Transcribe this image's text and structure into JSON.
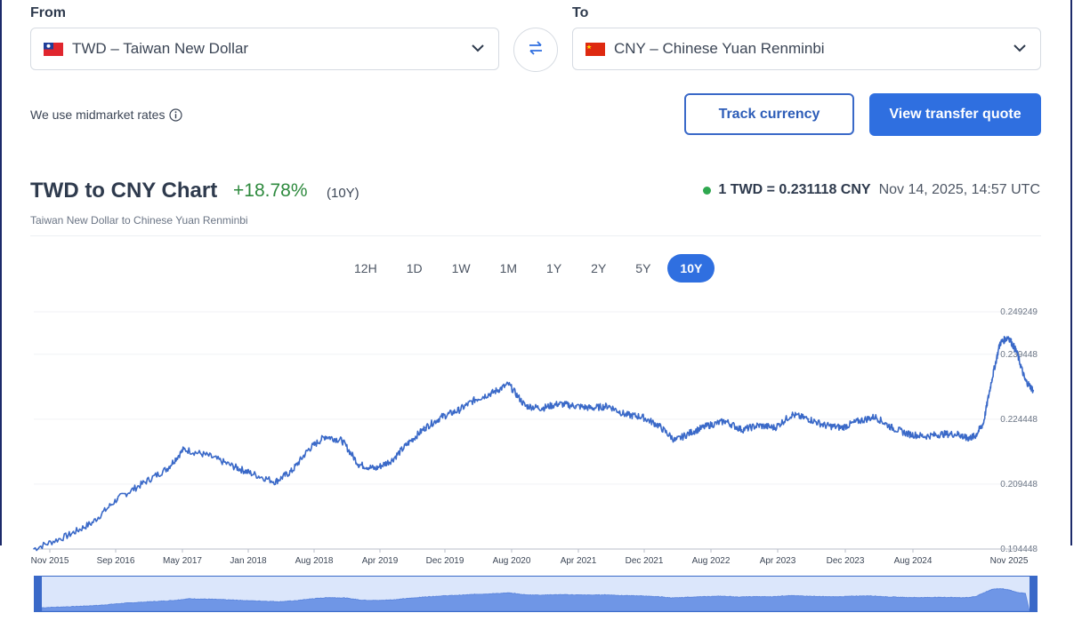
{
  "converter": {
    "from_label": "From",
    "to_label": "To",
    "from_currency": "TWD – Taiwan New Dollar",
    "to_currency": "CNY – Chinese Yuan Renminbi",
    "midmarket_text": "We use midmarket rates",
    "track_button": "Track currency",
    "quote_button": "View transfer quote",
    "icons": {
      "from_flag": "taiwan-flag-icon",
      "to_flag": "china-flag-icon",
      "swap": "swap-arrows-icon",
      "info": "info-icon",
      "chevron": "chevron-down-icon"
    }
  },
  "chart_header": {
    "title": "TWD to CNY Chart",
    "change": "+18.78%",
    "change_period": "(10Y)",
    "subtitle": "Taiwan New Dollar to Chinese Yuan Renminbi",
    "rate": "1 TWD = 0.231118 CNY",
    "timestamp": "Nov 14, 2025, 14:57 UTC"
  },
  "periods": [
    "12H",
    "1D",
    "1W",
    "1M",
    "1Y",
    "2Y",
    "5Y",
    "10Y"
  ],
  "active_period": "10Y",
  "colors": {
    "accent": "#2f6fe0",
    "line": "#3a69c8",
    "positive": "#2e8a3e",
    "live_dot": "#2fa84f"
  },
  "chart_data": {
    "type": "line",
    "title": "",
    "xlabel": "",
    "ylabel": "",
    "ylim": [
      0.194448,
      0.249249
    ],
    "y_tick_labels": [
      "0.249249",
      "0.239448",
      "0.224448",
      "0.209448",
      "0.194448"
    ],
    "x_tick_labels": [
      "Nov 2015",
      "Sep 2016",
      "May 2017",
      "Jan 2018",
      "Aug 2018",
      "Apr 2019",
      "Dec 2019",
      "Aug 2020",
      "Apr 2021",
      "Dec 2021",
      "Aug 2022",
      "Apr 2023",
      "Dec 2023",
      "Aug 2024",
      "Nov 2025"
    ],
    "series": [
      {
        "name": "",
        "x": [
          "2015-11",
          "2016-03",
          "2016-06",
          "2016-09",
          "2016-12",
          "2017-03",
          "2017-05",
          "2017-08",
          "2017-11",
          "2018-01",
          "2018-04",
          "2018-06",
          "2018-08",
          "2018-10",
          "2018-12",
          "2019-02",
          "2019-04",
          "2019-06",
          "2019-08",
          "2019-10",
          "2019-12",
          "2020-02",
          "2020-04",
          "2020-06",
          "2020-08",
          "2020-10",
          "2020-12",
          "2021-02",
          "2021-04",
          "2021-06",
          "2021-08",
          "2021-10",
          "2021-12",
          "2022-02",
          "2022-04",
          "2022-06",
          "2022-08",
          "2022-10",
          "2022-12",
          "2023-02",
          "2023-04",
          "2023-06",
          "2023-08",
          "2023-10",
          "2023-12",
          "2024-02",
          "2024-04",
          "2024-06",
          "2024-08",
          "2024-10",
          "2024-12",
          "2025-02",
          "2025-03",
          "2025-04",
          "2025-05",
          "2025-06",
          "2025-07",
          "2025-08",
          "2025-09",
          "2025-10",
          "2025-11"
        ],
        "values": [
          0.1945,
          0.1975,
          0.2005,
          0.206,
          0.2095,
          0.213,
          0.2175,
          0.216,
          0.2135,
          0.212,
          0.21,
          0.2125,
          0.2175,
          0.2205,
          0.2195,
          0.214,
          0.213,
          0.215,
          0.219,
          0.2225,
          0.225,
          0.2265,
          0.229,
          0.2305,
          0.2325,
          0.2275,
          0.227,
          0.228,
          0.2275,
          0.227,
          0.2275,
          0.2255,
          0.225,
          0.223,
          0.2195,
          0.2215,
          0.223,
          0.224,
          0.222,
          0.223,
          0.2225,
          0.2255,
          0.2245,
          0.223,
          0.2225,
          0.224,
          0.225,
          0.2225,
          0.221,
          0.2205,
          0.221,
          0.221,
          0.22,
          0.2205,
          0.2235,
          0.2335,
          0.242,
          0.2435,
          0.24,
          0.2335,
          0.2311
        ]
      }
    ],
    "grid": true,
    "legend": "none"
  }
}
